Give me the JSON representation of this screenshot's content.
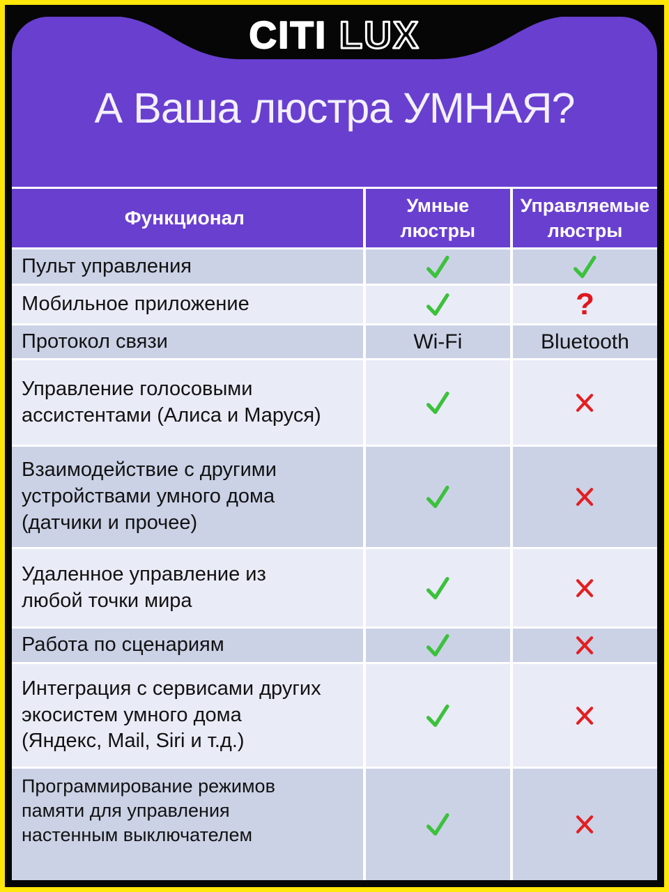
{
  "brand": {
    "citi": "CITI",
    "lux": "LUX"
  },
  "title": "А Ваша люстра УМНАЯ?",
  "table": {
    "headers": {
      "feature": "Функционал",
      "smart": "Умные\nлюстры",
      "controlled": "Управляемые\nлюстры"
    },
    "rows": [
      {
        "label": "Пульт управления",
        "smart": {
          "type": "check"
        },
        "controlled": {
          "type": "check"
        }
      },
      {
        "label": "Мобильное приложение",
        "smart": {
          "type": "check"
        },
        "controlled": {
          "type": "question"
        }
      },
      {
        "label": "Протокол связи",
        "smart": {
          "type": "text",
          "value": "Wi-Fi"
        },
        "controlled": {
          "type": "text",
          "value": "Bluetooth"
        }
      },
      {
        "label": "Управление голосовыми\nассистентами (Алиса и Маруся)",
        "smart": {
          "type": "check"
        },
        "controlled": {
          "type": "cross"
        }
      },
      {
        "label": "Взаимодействие с другими\nустройствами умного дома\n(датчики и прочее)",
        "smart": {
          "type": "check"
        },
        "controlled": {
          "type": "cross"
        }
      },
      {
        "label": "Удаленное управление из\nлюбой точки мира",
        "smart": {
          "type": "check"
        },
        "controlled": {
          "type": "cross"
        }
      },
      {
        "label": "Работа по сценариям",
        "smart": {
          "type": "check"
        },
        "controlled": {
          "type": "cross"
        }
      },
      {
        "label": "Интеграция с сервисами других\nэкосистем умного дома\n(Яндекс, Mail, Siri и т.д.)",
        "smart": {
          "type": "check"
        },
        "controlled": {
          "type": "cross"
        }
      },
      {
        "label": "Программирование режимов\nпамяти для управления\nнастенным выключателем",
        "smart": {
          "type": "check"
        },
        "controlled": {
          "type": "cross"
        }
      }
    ]
  },
  "symbols": {
    "check": "check-icon",
    "cross": "cross-icon",
    "question": "?"
  },
  "colors": {
    "purple": "#693FD0",
    "yellow": "#FFE70A",
    "black": "#060606",
    "row_dark": "#CBD2E6",
    "row_light": "#E9EBF6",
    "green": "#3CC13C",
    "red": "#E41E20",
    "white": "#FFFFFF"
  }
}
